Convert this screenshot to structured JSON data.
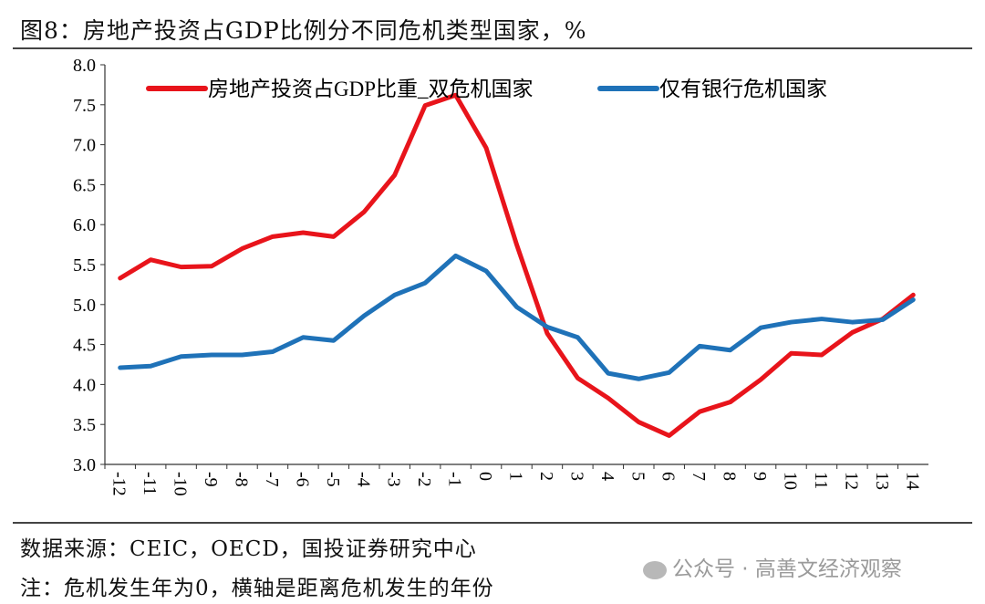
{
  "title": "图8：房地产投资占GDP比例分不同危机类型国家，%",
  "source": "数据来源：CEIC，OECD，国投证券研究中心",
  "note": "注：危机发生年为0，横轴是距离危机发生的年份",
  "watermark": "公众号 · 高善文经济观察",
  "chart_data": {
    "type": "line",
    "title": "",
    "xlabel": "",
    "ylabel": "",
    "ylim": [
      3.0,
      8.0
    ],
    "yticks": [
      "3.0",
      "3.5",
      "4.0",
      "4.5",
      "5.0",
      "5.5",
      "6.0",
      "6.5",
      "7.0",
      "7.5",
      "8.0"
    ],
    "grid": false,
    "legend": "top",
    "categories": [
      "-12",
      "-11",
      "-10",
      "-9",
      "-8",
      "-7",
      "-6",
      "-5",
      "-4",
      "-3",
      "-2",
      "-1",
      "0",
      "1",
      "2",
      "3",
      "4",
      "5",
      "6",
      "7",
      "8",
      "9",
      "10",
      "11",
      "12",
      "13",
      "14"
    ],
    "series": [
      {
        "name": "房地产投资占GDP比重_双危机国家",
        "color": "#e8141b",
        "values": [
          5.33,
          5.56,
          5.47,
          5.48,
          5.7,
          5.85,
          5.9,
          5.85,
          6.16,
          6.62,
          7.49,
          7.62,
          6.96,
          5.75,
          4.64,
          4.08,
          3.83,
          3.53,
          3.36,
          3.66,
          3.78,
          4.06,
          4.39,
          4.37,
          4.65,
          4.82,
          5.12
        ]
      },
      {
        "name": "仅有银行危机国家",
        "color": "#1f72b8",
        "values": [
          4.21,
          4.23,
          4.35,
          4.37,
          4.37,
          4.41,
          4.59,
          4.55,
          4.86,
          5.12,
          5.27,
          5.61,
          5.42,
          4.97,
          4.72,
          4.59,
          4.14,
          4.07,
          4.15,
          4.48,
          4.43,
          4.71,
          4.78,
          4.82,
          4.78,
          4.81,
          5.06
        ]
      }
    ]
  }
}
